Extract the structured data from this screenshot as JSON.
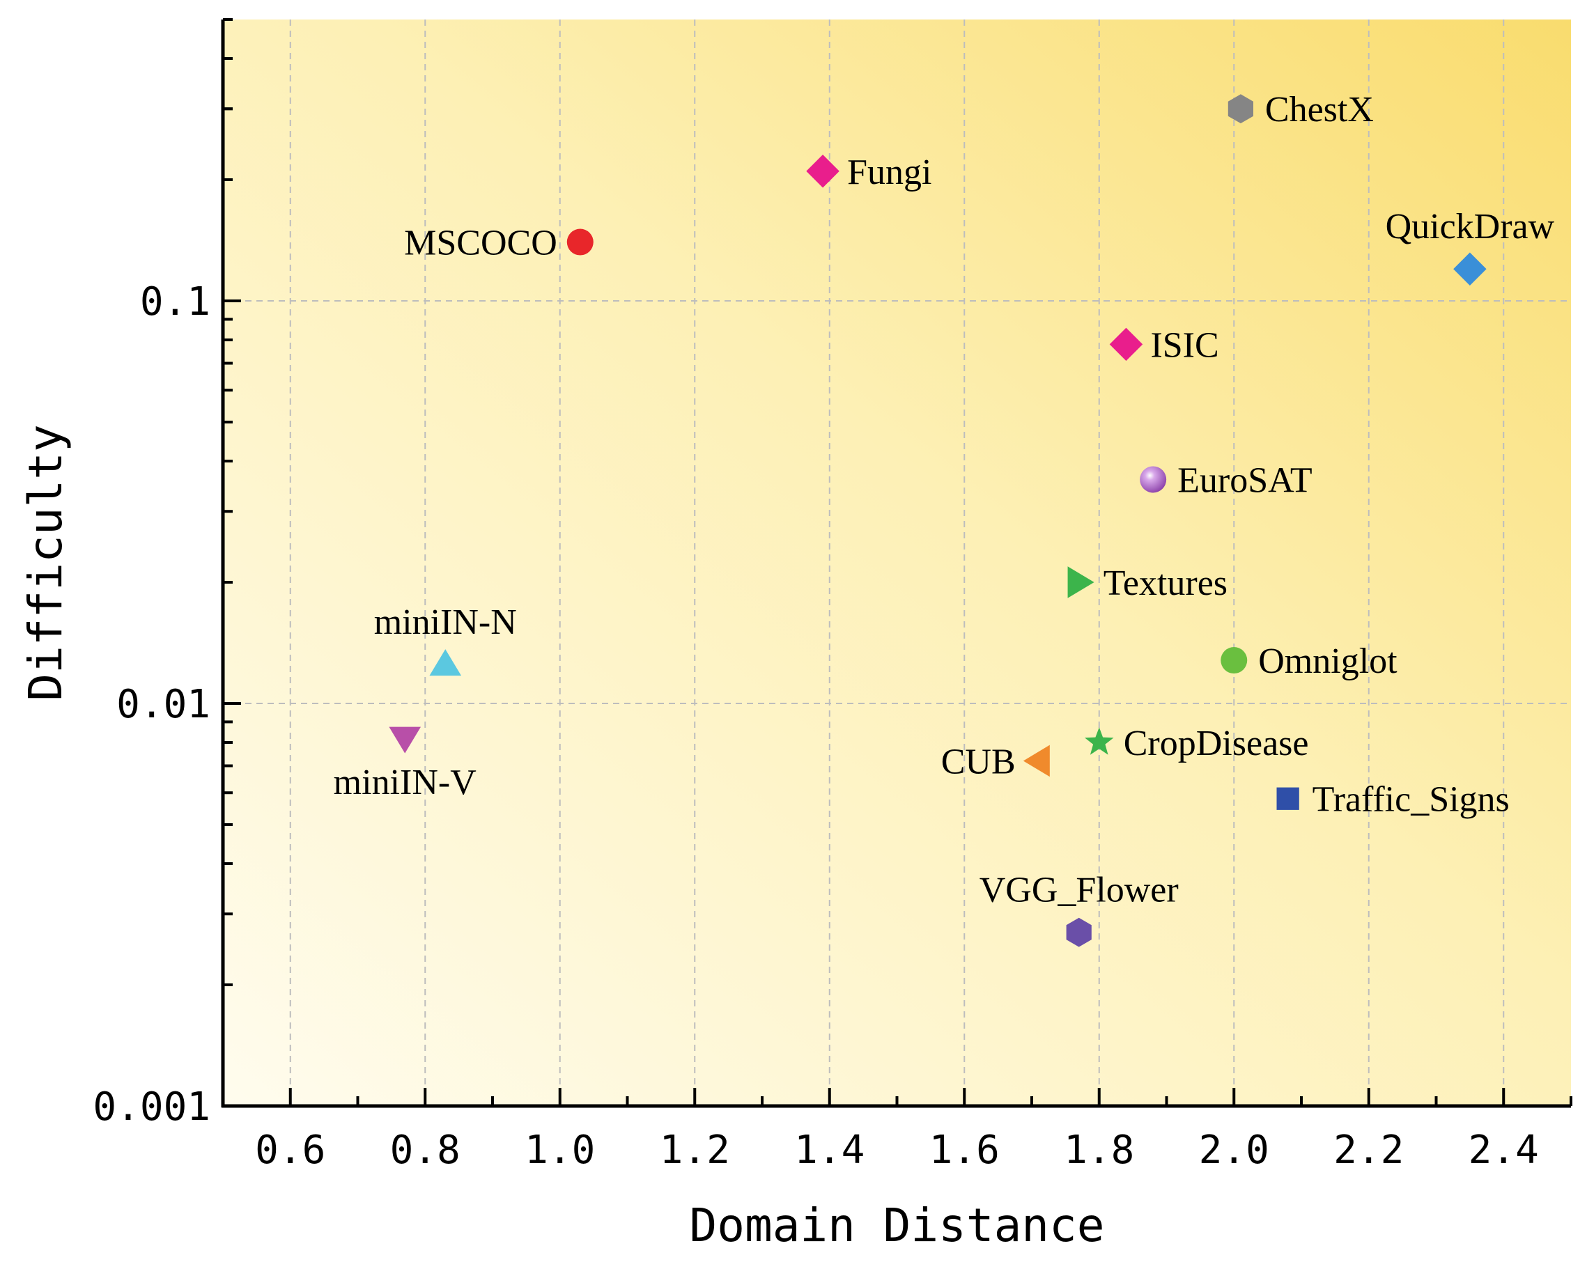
{
  "chart_data": {
    "type": "scatter",
    "xlabel": "Domain Distance",
    "ylabel": "Difficulty",
    "xlim": [
      0.5,
      2.5
    ],
    "ylim": [
      0.001,
      0.5
    ],
    "yscale": "log",
    "x_ticks": [
      0.6,
      0.8,
      1.0,
      1.2,
      1.4,
      1.6,
      1.8,
      2.0,
      2.2,
      2.4
    ],
    "x_tick_labels": [
      "0.6",
      "0.8",
      "1.0",
      "1.2",
      "1.4",
      "1.6",
      "1.8",
      "2.0",
      "2.2",
      "2.4"
    ],
    "y_ticks": [
      0.001,
      0.01,
      0.1
    ],
    "y_tick_labels": [
      "0.001",
      "0.01",
      "0.1"
    ],
    "grid": true,
    "background": "gradient light-cream (lower-left) to yellow (upper-right)",
    "points": [
      {
        "name": "ChestX",
        "x": 2.01,
        "y": 0.3,
        "marker": "hexagon",
        "color": "#858585",
        "label_pos": "right"
      },
      {
        "name": "Fungi",
        "x": 1.39,
        "y": 0.21,
        "marker": "diamond",
        "color": "#e91e8c",
        "label_pos": "right"
      },
      {
        "name": "MSCOCO",
        "x": 1.03,
        "y": 0.14,
        "marker": "circle",
        "color": "#e8262a",
        "label_pos": "left"
      },
      {
        "name": "QuickDraw",
        "x": 2.35,
        "y": 0.12,
        "marker": "diamond",
        "color": "#3a8fd8",
        "label_pos": "top"
      },
      {
        "name": "ISIC",
        "x": 1.84,
        "y": 0.078,
        "marker": "diamond",
        "color": "#e91e8c",
        "label_pos": "right"
      },
      {
        "name": "EuroSAT",
        "x": 1.88,
        "y": 0.036,
        "marker": "sphere",
        "color": "#9b4fb8",
        "label_pos": "right"
      },
      {
        "name": "Textures",
        "x": 1.77,
        "y": 0.02,
        "marker": "triangle-right",
        "color": "#3cb44b",
        "label_pos": "right"
      },
      {
        "name": "miniIN-N",
        "x": 0.83,
        "y": 0.0125,
        "marker": "triangle-up",
        "color": "#5bc8e0",
        "label_pos": "top"
      },
      {
        "name": "Omniglot",
        "x": 2.0,
        "y": 0.0128,
        "marker": "circle",
        "color": "#6abf3f",
        "label_pos": "right"
      },
      {
        "name": "miniIN-V",
        "x": 0.77,
        "y": 0.0082,
        "marker": "triangle-down",
        "color": "#b84fa8",
        "label_pos": "bottom"
      },
      {
        "name": "CropDisease",
        "x": 1.8,
        "y": 0.008,
        "marker": "star",
        "color": "#3cb44b",
        "label_pos": "right"
      },
      {
        "name": "CUB",
        "x": 1.71,
        "y": 0.0072,
        "marker": "triangle-left",
        "color": "#f08a2c",
        "label_pos": "left"
      },
      {
        "name": "Traffic_Signs",
        "x": 2.08,
        "y": 0.0058,
        "marker": "square",
        "color": "#2f4fa8",
        "label_pos": "right"
      },
      {
        "name": "VGG_Flower",
        "x": 1.77,
        "y": 0.0027,
        "marker": "hexagon",
        "color": "#6a4fa8",
        "label_pos": "top"
      }
    ]
  }
}
